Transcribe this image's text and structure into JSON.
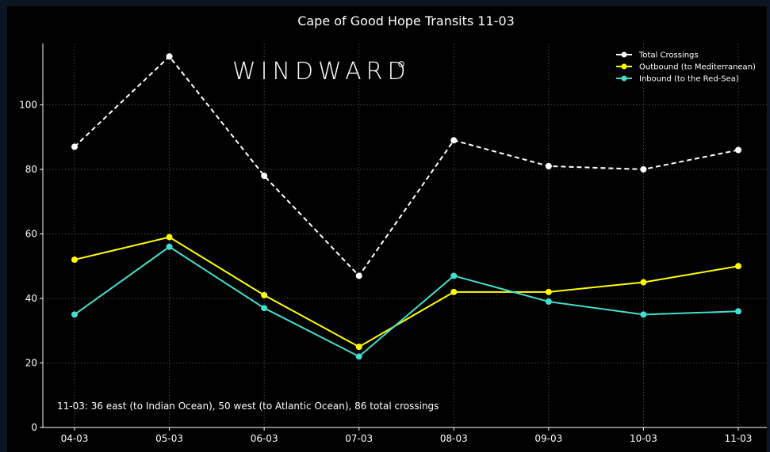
{
  "watermark": "WINDWARD",
  "chart_data": {
    "type": "line",
    "title": "Cape of Good Hope Transits 11-03",
    "xlabel": "",
    "ylabel": "",
    "categories": [
      "04-03",
      "05-03",
      "06-03",
      "07-03",
      "08-03",
      "09-03",
      "10-03",
      "11-03"
    ],
    "ylim": [
      0,
      119
    ],
    "yticks": [
      0,
      20,
      40,
      60,
      80,
      100
    ],
    "grid": true,
    "legend_position": "top-right",
    "series": [
      {
        "name": "Total Crossings",
        "values": [
          87,
          115,
          78,
          47,
          89,
          81,
          80,
          86
        ],
        "color": "#ffffff",
        "dashed": true
      },
      {
        "name": "Outbound (to Mediterranean)",
        "values": [
          52,
          59,
          41,
          25,
          42,
          42,
          45,
          50
        ],
        "color": "#ffff00",
        "dashed": false
      },
      {
        "name": "Inbound (to the Red-Sea)",
        "values": [
          35,
          56,
          37,
          22,
          47,
          39,
          35,
          36
        ],
        "color": "#40e0d0",
        "dashed": false
      }
    ],
    "annotation": "11-03: 36 east (to Indian Ocean), 50 west (to Atlantic Ocean), 86 total crossings"
  }
}
